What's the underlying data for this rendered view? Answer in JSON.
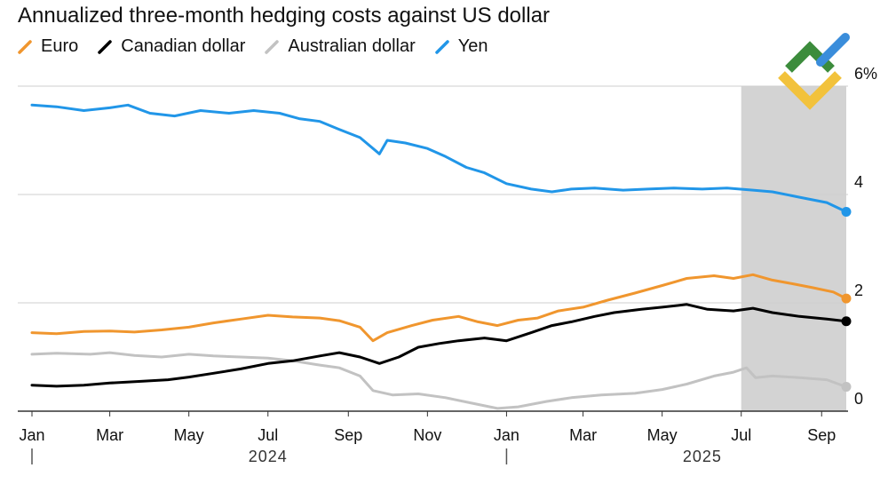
{
  "chart_data": {
    "type": "line",
    "title": "Annualized three-month hedging costs against US dollar",
    "ylim": [
      0,
      6
    ],
    "y_ticks": [
      {
        "value": 0,
        "label": "0"
      },
      {
        "value": 2,
        "label": "2"
      },
      {
        "value": 4,
        "label": "4"
      },
      {
        "value": 6,
        "label": "6%"
      }
    ],
    "x_range": [
      "2024-01-01",
      "2025-09-20"
    ],
    "x_ticks": [
      {
        "date": "2024-01-01",
        "label": "Jan"
      },
      {
        "date": "2024-03-01",
        "label": "Mar"
      },
      {
        "date": "2024-05-01",
        "label": "May"
      },
      {
        "date": "2024-07-01",
        "label": "Jul"
      },
      {
        "date": "2024-09-01",
        "label": "Sep"
      },
      {
        "date": "2024-11-01",
        "label": "Nov"
      },
      {
        "date": "2025-01-01",
        "label": "Jan"
      },
      {
        "date": "2025-03-01",
        "label": "Mar"
      },
      {
        "date": "2025-05-01",
        "label": "May"
      },
      {
        "date": "2025-07-01",
        "label": "Jul"
      },
      {
        "date": "2025-09-01",
        "label": "Sep"
      }
    ],
    "year_labels": [
      {
        "date": "2024-07-01",
        "label": "2024",
        "divider_date": "2024-01-01"
      },
      {
        "date": "2025-06-01",
        "label": "2025",
        "divider_date": "2025-01-01"
      }
    ],
    "shaded_range": [
      "2025-07-01",
      "2025-09-20"
    ],
    "grid": true,
    "legend_position": "top-left",
    "series": [
      {
        "name": "Euro",
        "color": "#f0962e",
        "points": [
          [
            "2024-01-01",
            1.45
          ],
          [
            "2024-01-20",
            1.43
          ],
          [
            "2024-02-10",
            1.47
          ],
          [
            "2024-03-01",
            1.48
          ],
          [
            "2024-03-20",
            1.46
          ],
          [
            "2024-04-10",
            1.5
          ],
          [
            "2024-05-01",
            1.55
          ],
          [
            "2024-05-20",
            1.63
          ],
          [
            "2024-06-10",
            1.7
          ],
          [
            "2024-07-01",
            1.77
          ],
          [
            "2024-07-20",
            1.74
          ],
          [
            "2024-08-10",
            1.72
          ],
          [
            "2024-08-25",
            1.67
          ],
          [
            "2024-09-10",
            1.55
          ],
          [
            "2024-09-20",
            1.3
          ],
          [
            "2024-10-01",
            1.45
          ],
          [
            "2024-10-20",
            1.58
          ],
          [
            "2024-11-05",
            1.68
          ],
          [
            "2024-11-25",
            1.75
          ],
          [
            "2024-12-10",
            1.65
          ],
          [
            "2024-12-25",
            1.58
          ],
          [
            "2025-01-10",
            1.68
          ],
          [
            "2025-01-25",
            1.72
          ],
          [
            "2025-02-10",
            1.85
          ],
          [
            "2025-03-01",
            1.92
          ],
          [
            "2025-03-20",
            2.05
          ],
          [
            "2025-04-10",
            2.18
          ],
          [
            "2025-05-01",
            2.32
          ],
          [
            "2025-05-20",
            2.45
          ],
          [
            "2025-06-10",
            2.5
          ],
          [
            "2025-06-25",
            2.45
          ],
          [
            "2025-07-10",
            2.52
          ],
          [
            "2025-07-25",
            2.42
          ],
          [
            "2025-08-10",
            2.35
          ],
          [
            "2025-08-25",
            2.28
          ],
          [
            "2025-09-10",
            2.2
          ],
          [
            "2025-09-20",
            2.08
          ]
        ]
      },
      {
        "name": "Canadian dollar",
        "color": "#000000",
        "points": [
          [
            "2024-01-01",
            0.48
          ],
          [
            "2024-01-20",
            0.46
          ],
          [
            "2024-02-10",
            0.48
          ],
          [
            "2024-03-01",
            0.52
          ],
          [
            "2024-03-25",
            0.55
          ],
          [
            "2024-04-15",
            0.58
          ],
          [
            "2024-05-01",
            0.63
          ],
          [
            "2024-05-20",
            0.7
          ],
          [
            "2024-06-10",
            0.78
          ],
          [
            "2024-07-01",
            0.88
          ],
          [
            "2024-07-20",
            0.93
          ],
          [
            "2024-08-10",
            1.02
          ],
          [
            "2024-08-25",
            1.08
          ],
          [
            "2024-09-10",
            1.0
          ],
          [
            "2024-09-25",
            0.88
          ],
          [
            "2024-10-10",
            1.0
          ],
          [
            "2024-10-25",
            1.18
          ],
          [
            "2024-11-10",
            1.25
          ],
          [
            "2024-11-25",
            1.3
          ],
          [
            "2024-12-15",
            1.35
          ],
          [
            "2025-01-01",
            1.3
          ],
          [
            "2025-01-20",
            1.45
          ],
          [
            "2025-02-05",
            1.58
          ],
          [
            "2025-02-20",
            1.65
          ],
          [
            "2025-03-10",
            1.75
          ],
          [
            "2025-03-25",
            1.82
          ],
          [
            "2025-04-15",
            1.88
          ],
          [
            "2025-05-01",
            1.92
          ],
          [
            "2025-05-20",
            1.97
          ],
          [
            "2025-06-05",
            1.88
          ],
          [
            "2025-06-25",
            1.85
          ],
          [
            "2025-07-10",
            1.9
          ],
          [
            "2025-07-25",
            1.82
          ],
          [
            "2025-08-15",
            1.75
          ],
          [
            "2025-09-05",
            1.7
          ],
          [
            "2025-09-20",
            1.66
          ]
        ]
      },
      {
        "name": "Australian dollar",
        "color": "#c2c2c2",
        "points": [
          [
            "2024-01-01",
            1.05
          ],
          [
            "2024-01-20",
            1.07
          ],
          [
            "2024-02-15",
            1.05
          ],
          [
            "2024-03-01",
            1.08
          ],
          [
            "2024-03-20",
            1.03
          ],
          [
            "2024-04-10",
            1.0
          ],
          [
            "2024-05-01",
            1.05
          ],
          [
            "2024-05-20",
            1.02
          ],
          [
            "2024-06-10",
            1.0
          ],
          [
            "2024-07-01",
            0.98
          ],
          [
            "2024-07-20",
            0.93
          ],
          [
            "2024-08-10",
            0.85
          ],
          [
            "2024-08-25",
            0.8
          ],
          [
            "2024-09-10",
            0.65
          ],
          [
            "2024-09-20",
            0.38
          ],
          [
            "2024-10-05",
            0.3
          ],
          [
            "2024-10-25",
            0.32
          ],
          [
            "2024-11-15",
            0.25
          ],
          [
            "2024-12-05",
            0.15
          ],
          [
            "2024-12-25",
            0.05
          ],
          [
            "2025-01-10",
            0.08
          ],
          [
            "2025-02-01",
            0.18
          ],
          [
            "2025-02-20",
            0.25
          ],
          [
            "2025-03-15",
            0.3
          ],
          [
            "2025-04-10",
            0.33
          ],
          [
            "2025-05-01",
            0.4
          ],
          [
            "2025-05-20",
            0.5
          ],
          [
            "2025-06-10",
            0.65
          ],
          [
            "2025-06-25",
            0.72
          ],
          [
            "2025-07-05",
            0.8
          ],
          [
            "2025-07-12",
            0.62
          ],
          [
            "2025-07-25",
            0.65
          ],
          [
            "2025-08-15",
            0.62
          ],
          [
            "2025-09-05",
            0.58
          ],
          [
            "2025-09-20",
            0.45
          ]
        ]
      },
      {
        "name": "Yen",
        "color": "#2196e8",
        "points": [
          [
            "2024-01-01",
            5.65
          ],
          [
            "2024-01-20",
            5.62
          ],
          [
            "2024-02-10",
            5.55
          ],
          [
            "2024-03-01",
            5.6
          ],
          [
            "2024-03-15",
            5.65
          ],
          [
            "2024-04-01",
            5.5
          ],
          [
            "2024-04-20",
            5.45
          ],
          [
            "2024-05-10",
            5.55
          ],
          [
            "2024-06-01",
            5.5
          ],
          [
            "2024-06-20",
            5.55
          ],
          [
            "2024-07-10",
            5.5
          ],
          [
            "2024-07-25",
            5.4
          ],
          [
            "2024-08-10",
            5.35
          ],
          [
            "2024-08-25",
            5.2
          ],
          [
            "2024-09-10",
            5.05
          ],
          [
            "2024-09-25",
            4.75
          ],
          [
            "2024-10-01",
            5.0
          ],
          [
            "2024-10-15",
            4.95
          ],
          [
            "2024-11-01",
            4.85
          ],
          [
            "2024-11-15",
            4.7
          ],
          [
            "2024-12-01",
            4.5
          ],
          [
            "2024-12-15",
            4.4
          ],
          [
            "2025-01-01",
            4.2
          ],
          [
            "2025-01-20",
            4.1
          ],
          [
            "2025-02-05",
            4.05
          ],
          [
            "2025-02-20",
            4.1
          ],
          [
            "2025-03-10",
            4.12
          ],
          [
            "2025-04-01",
            4.08
          ],
          [
            "2025-04-20",
            4.1
          ],
          [
            "2025-05-10",
            4.12
          ],
          [
            "2025-06-01",
            4.1
          ],
          [
            "2025-06-20",
            4.12
          ],
          [
            "2025-07-10",
            4.08
          ],
          [
            "2025-07-25",
            4.05
          ],
          [
            "2025-08-15",
            3.95
          ],
          [
            "2025-09-05",
            3.85
          ],
          [
            "2025-09-20",
            3.68
          ]
        ]
      }
    ]
  },
  "logo": {
    "name": "brand-logo"
  }
}
